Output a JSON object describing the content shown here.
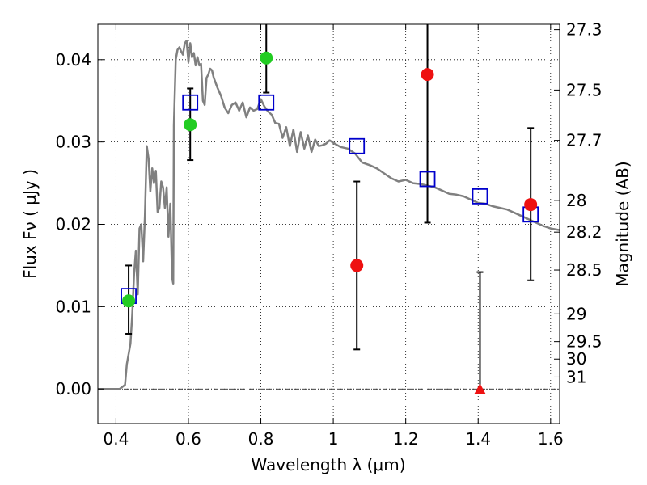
{
  "chart_data": {
    "type": "scatter",
    "xlabel": "Wavelength  λ (μm)",
    "ylabel": "Flux  Fν  ( μJy )",
    "y2label": "Magnitude (AB)",
    "xlim": [
      0.35,
      1.625
    ],
    "ylim": [
      -0.0042,
      0.0443
    ],
    "x_ticks": [
      {
        "value": 0.4,
        "label": "0.4"
      },
      {
        "value": 0.6,
        "label": "0.6"
      },
      {
        "value": 0.8,
        "label": "0.8"
      },
      {
        "value": 1.0,
        "label": "1"
      },
      {
        "value": 1.2,
        "label": "1.2"
      },
      {
        "value": 1.4,
        "label": "1.4"
      },
      {
        "value": 1.6,
        "label": "1.6"
      }
    ],
    "y_ticks": [
      {
        "value": 0.0,
        "label": "0.00"
      },
      {
        "value": 0.01,
        "label": "0.01"
      },
      {
        "value": 0.02,
        "label": "0.02"
      },
      {
        "value": 0.03,
        "label": "0.03"
      },
      {
        "value": 0.04,
        "label": "0.04"
      }
    ],
    "y2_ticks": [
      {
        "flux": 0.04365,
        "label": "27.3"
      },
      {
        "flux": 0.03631,
        "label": "27.5"
      },
      {
        "flux": 0.0302,
        "label": "27.7"
      },
      {
        "flux": 0.02291,
        "label": "28"
      },
      {
        "flux": 0.01905,
        "label": "28.2"
      },
      {
        "flux": 0.01445,
        "label": "28.5"
      },
      {
        "flux": 0.00912,
        "label": "29"
      },
      {
        "flux": 0.00575,
        "label": "29.5"
      },
      {
        "flux": 0.00363,
        "label": "30"
      },
      {
        "flux": 0.00145,
        "label": "31"
      }
    ],
    "grid": true,
    "zero_line": true,
    "series": [
      {
        "kind": "line",
        "color": "#808080",
        "x": [
          0.35,
          0.41,
          0.425,
          0.43,
          0.44,
          0.445,
          0.45,
          0.455,
          0.46,
          0.465,
          0.47,
          0.475,
          0.48,
          0.485,
          0.49,
          0.495,
          0.5,
          0.505,
          0.51,
          0.515,
          0.52,
          0.525,
          0.53,
          0.535,
          0.54,
          0.545,
          0.55,
          0.555,
          0.558,
          0.56,
          0.565,
          0.57,
          0.575,
          0.58,
          0.585,
          0.59,
          0.595,
          0.6,
          0.605,
          0.61,
          0.615,
          0.62,
          0.625,
          0.63,
          0.635,
          0.64,
          0.645,
          0.65,
          0.655,
          0.66,
          0.665,
          0.67,
          0.68,
          0.69,
          0.7,
          0.71,
          0.72,
          0.73,
          0.74,
          0.75,
          0.76,
          0.77,
          0.78,
          0.79,
          0.8,
          0.81,
          0.82,
          0.83,
          0.84,
          0.85,
          0.86,
          0.87,
          0.88,
          0.89,
          0.9,
          0.91,
          0.92,
          0.93,
          0.94,
          0.95,
          0.96,
          0.97,
          0.98,
          0.99,
          1.0,
          1.02,
          1.04,
          1.06,
          1.08,
          1.1,
          1.12,
          1.14,
          1.16,
          1.18,
          1.2,
          1.22,
          1.24,
          1.26,
          1.28,
          1.3,
          1.32,
          1.34,
          1.36,
          1.38,
          1.4,
          1.42,
          1.44,
          1.46,
          1.48,
          1.5,
          1.52,
          1.54,
          1.56,
          1.58,
          1.6,
          1.625
        ],
        "y": [
          0.0,
          0.0,
          0.0005,
          0.003,
          0.0055,
          0.009,
          0.014,
          0.0168,
          0.0115,
          0.0195,
          0.02,
          0.0155,
          0.021,
          0.0295,
          0.028,
          0.024,
          0.0268,
          0.025,
          0.0265,
          0.0215,
          0.022,
          0.0252,
          0.0245,
          0.022,
          0.0245,
          0.0185,
          0.0225,
          0.0135,
          0.0128,
          0.032,
          0.04,
          0.0412,
          0.0415,
          0.041,
          0.0406,
          0.042,
          0.0423,
          0.0397,
          0.042,
          0.0403,
          0.0408,
          0.0393,
          0.0403,
          0.0393,
          0.0395,
          0.035,
          0.0345,
          0.0378,
          0.0382,
          0.0389,
          0.0387,
          0.0378,
          0.0366,
          0.0356,
          0.0342,
          0.0335,
          0.0345,
          0.0348,
          0.0338,
          0.0348,
          0.033,
          0.0342,
          0.0338,
          0.034,
          0.0352,
          0.0343,
          0.0337,
          0.0333,
          0.0323,
          0.0322,
          0.0305,
          0.0318,
          0.0295,
          0.0315,
          0.0288,
          0.0312,
          0.0292,
          0.0308,
          0.0288,
          0.0303,
          0.0295,
          0.0296,
          0.0298,
          0.0302,
          0.0299,
          0.0294,
          0.0292,
          0.0286,
          0.0275,
          0.0272,
          0.0268,
          0.0262,
          0.0256,
          0.0252,
          0.0254,
          0.025,
          0.0249,
          0.0247,
          0.0245,
          0.0241,
          0.0237,
          0.0236,
          0.0234,
          0.023,
          0.0226,
          0.0225,
          0.0222,
          0.022,
          0.0218,
          0.0214,
          0.021,
          0.0206,
          0.0202,
          0.0198,
          0.0195,
          0.0193
        ]
      },
      {
        "kind": "squares",
        "color": "#0000cc",
        "x": [
          0.435,
          0.605,
          0.815,
          1.065,
          1.26,
          1.405,
          1.545
        ],
        "y": [
          0.0113,
          0.0348,
          0.0348,
          0.0295,
          0.0255,
          0.0234,
          0.0212
        ]
      },
      {
        "kind": "points",
        "color": "#22cc22",
        "x": [
          0.435,
          0.605,
          0.815
        ],
        "y": [
          0.0107,
          0.0321,
          0.0402
        ],
        "yerr_low": [
          0.0067,
          0.0278,
          0.036
        ],
        "yerr_high": [
          0.015,
          0.0365,
          0.0443
        ]
      },
      {
        "kind": "points",
        "color": "#ee1111",
        "x": [
          1.065,
          1.26,
          1.545
        ],
        "y": [
          0.015,
          0.0382,
          0.0224
        ],
        "yerr_low": [
          0.0048,
          0.0202,
          0.0132
        ],
        "yerr_high": [
          0.0252,
          0.0443,
          0.0317
        ]
      },
      {
        "kind": "triangle",
        "color": "#ee1111",
        "x": [
          1.405
        ],
        "y": [
          0.0
        ],
        "yerr_low": [
          0.0
        ],
        "yerr_high": [
          0.0142
        ]
      }
    ]
  }
}
